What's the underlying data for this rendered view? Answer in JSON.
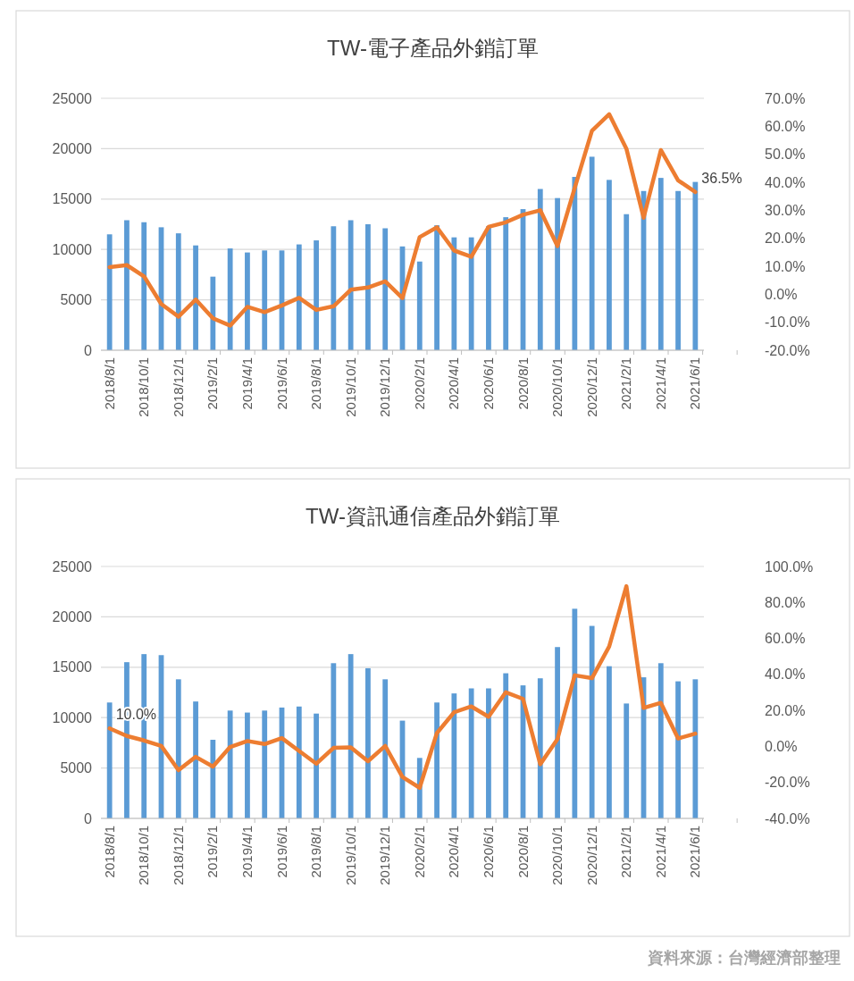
{
  "chart_data": [
    {
      "type": "bar",
      "title": "TW-電子產品外銷訂單",
      "categories": [
        "2018/8/1",
        null,
        "2018/10/1",
        null,
        "2018/12/1",
        null,
        "2019/2/1",
        null,
        "2019/4/1",
        null,
        "2019/6/1",
        null,
        "2019/8/1",
        null,
        "2019/10/1",
        null,
        "2019/12/1",
        null,
        "2020/2/1",
        null,
        "2020/4/1",
        null,
        "2020/6/1",
        null,
        "2020/8/1",
        null,
        "2020/10/1",
        null,
        "2020/12/1",
        null,
        "2021/2/1",
        null,
        "2021/4/1",
        null,
        "2021/6/1"
      ],
      "series": [
        {
          "color": "#5b9bd5",
          "values": [
            11500,
            12900,
            12700,
            12200,
            11600,
            10400,
            7300,
            10100,
            9700,
            9900,
            9900,
            10500,
            10900,
            12300,
            12900,
            12500,
            12100,
            10300,
            8800,
            12400,
            11200,
            11200,
            12300,
            13200,
            14000,
            16000,
            15100,
            17200,
            19200,
            16900,
            13500,
            15800,
            17100,
            15800,
            16700
          ]
        },
        {
          "type": "line",
          "axis": "y2",
          "color": "#ed7d31",
          "values": [
            9.7,
            10.4,
            6.4,
            -3.5,
            -8,
            -1.9,
            -8.6,
            -11.2,
            -4.5,
            -6.4,
            -4,
            -1.3,
            -5.6,
            -4.3,
            1.6,
            2.4,
            4.6,
            -1.4,
            20.4,
            23.9,
            15.6,
            13.4,
            24.1,
            25.7,
            28.4,
            30,
            17.2,
            38,
            58.4,
            64.3,
            52,
            27.3,
            51.5,
            40.7,
            36.5
          ],
          "value_labels": [
            null,
            null,
            null,
            null,
            null,
            null,
            null,
            null,
            null,
            null,
            null,
            null,
            null,
            null,
            null,
            null,
            null,
            null,
            null,
            null,
            null,
            null,
            null,
            null,
            null,
            null,
            null,
            null,
            null,
            null,
            null,
            null,
            null,
            null,
            "36.5%"
          ]
        }
      ],
      "ylim": [
        0,
        25000
      ],
      "yticks": [
        0,
        5000,
        10000,
        15000,
        20000,
        25000
      ],
      "y2lim": [
        -20,
        70
      ],
      "y2ticks": [
        {
          "value": -20,
          "label": "-20.0%"
        },
        {
          "value": -10,
          "label": "-10.0%"
        },
        {
          "value": 0,
          "label": "0.0%"
        },
        {
          "value": 10,
          "label": "10.0%"
        },
        {
          "value": 20,
          "label": "20.0%"
        },
        {
          "value": 30,
          "label": "30.0%"
        },
        {
          "value": 40,
          "label": "40.0%"
        },
        {
          "value": 50,
          "label": "50.0%"
        },
        {
          "value": 60,
          "label": "60.0%"
        },
        {
          "value": 70,
          "label": "70.0%"
        }
      ],
      "grid": "y"
    },
    {
      "type": "bar",
      "title": "TW-資訊通信產品外銷訂單",
      "categories": [
        "2018/8/1",
        null,
        "2018/10/1",
        null,
        "2018/12/1",
        null,
        "2019/2/1",
        null,
        "2019/4/1",
        null,
        "2019/6/1",
        null,
        "2019/8/1",
        null,
        "2019/10/1",
        null,
        "2019/12/1",
        null,
        "2020/2/1",
        null,
        "2020/4/1",
        null,
        "2020/6/1",
        null,
        "2020/8/1",
        null,
        "2020/10/1",
        null,
        "2020/12/1",
        null,
        "2021/2/1",
        null,
        "2021/4/1",
        null,
        "2021/6/1"
      ],
      "series": [
        {
          "color": "#5b9bd5",
          "values": [
            11500,
            15500,
            16300,
            16200,
            13800,
            11600,
            7800,
            10700,
            10500,
            10700,
            11000,
            11100,
            10400,
            15400,
            16300,
            14900,
            13800,
            9700,
            6000,
            11500,
            12400,
            12900,
            12900,
            14400,
            13200,
            13900,
            17000,
            20800,
            19100,
            15100,
            11400,
            14000,
            15400,
            13600,
            13800
          ]
        },
        {
          "type": "line",
          "axis": "y2",
          "color": "#ed7d31",
          "values": [
            10.0,
            5.8,
            3.3,
            0.3,
            -13.2,
            -5.8,
            -11.2,
            -0.3,
            3.0,
            1.3,
            4.6,
            -2.5,
            -9.6,
            -0.8,
            -0.5,
            -8.2,
            0.3,
            -17,
            -23,
            7.4,
            19,
            22.2,
            16.5,
            30.1,
            26.4,
            -9.9,
            4.1,
            39.5,
            37.9,
            55.5,
            89,
            21.4,
            24.2,
            4.4,
            7.1
          ],
          "value_labels": [
            "10.0%",
            null,
            null,
            null,
            null,
            null,
            null,
            null,
            null,
            null,
            null,
            null,
            null,
            null,
            null,
            null,
            null,
            null,
            null,
            null,
            null,
            null,
            null,
            null,
            null,
            null,
            null,
            null,
            null,
            null,
            null,
            null,
            null,
            null,
            null
          ]
        }
      ],
      "ylim": [
        0,
        25000
      ],
      "yticks": [
        0,
        5000,
        10000,
        15000,
        20000,
        25000
      ],
      "y2lim": [
        -40,
        100
      ],
      "y2ticks": [
        {
          "value": -40,
          "label": "-40.0%"
        },
        {
          "value": -20,
          "label": "-20.0%"
        },
        {
          "value": 0,
          "label": "0.0%"
        },
        {
          "value": 20,
          "label": "20.0%"
        },
        {
          "value": 40,
          "label": "40.0%"
        },
        {
          "value": 60,
          "label": "60.0%"
        },
        {
          "value": 80,
          "label": "80.0%"
        },
        {
          "value": 100,
          "label": "100.0%"
        }
      ],
      "grid": "y",
      "annotations": [
        "資料來源：台灣經濟部整理"
      ]
    }
  ]
}
